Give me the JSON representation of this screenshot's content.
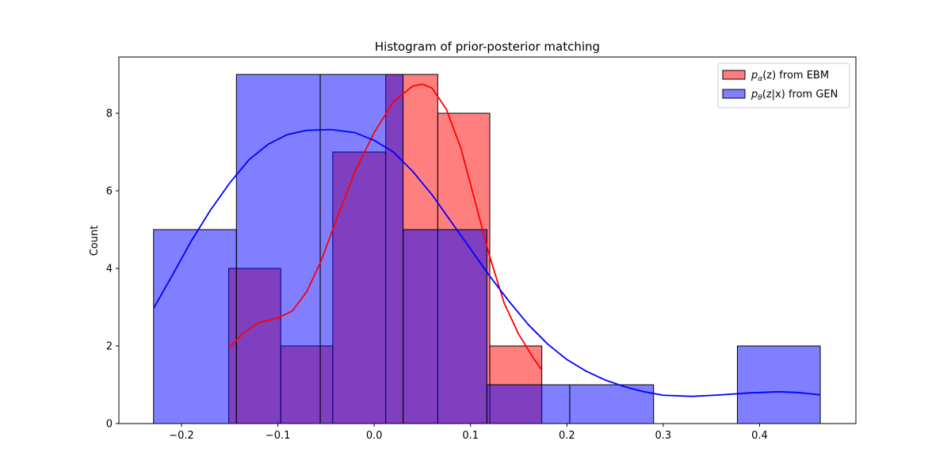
{
  "chart_data": {
    "type": "histogram",
    "title": "Histogram of prior-posterior matching",
    "xlabel": "",
    "ylabel": "Count",
    "xlim": [
      -0.265,
      0.5
    ],
    "ylim": [
      0,
      9.45
    ],
    "x_ticks": [
      -0.2,
      -0.1,
      0.0,
      0.1,
      0.2,
      0.3,
      0.4
    ],
    "x_tick_labels": [
      "−0.2",
      "−0.1",
      "0.0",
      "0.1",
      "0.2",
      "0.3",
      "0.4"
    ],
    "y_ticks": [
      0,
      2,
      4,
      6,
      8
    ],
    "y_tick_labels": [
      "0",
      "2",
      "4",
      "6",
      "8"
    ],
    "grid": false,
    "legend_position": "top-right",
    "series": [
      {
        "name": "p_α(z) from EBM",
        "legend_main": "p",
        "legend_sub": "α",
        "legend_rest": "(z) from EBM",
        "color": "#ff0000",
        "fill": "#ff8080",
        "bins": [
          {
            "x0": -0.151,
            "x1": -0.097,
            "count": 4
          },
          {
            "x0": -0.097,
            "x1": -0.043,
            "count": 2
          },
          {
            "x0": -0.043,
            "x1": 0.012,
            "count": 7
          },
          {
            "x0": 0.012,
            "x1": 0.066,
            "count": 9
          },
          {
            "x0": 0.066,
            "x1": 0.12,
            "count": 8
          },
          {
            "x0": 0.12,
            "x1": 0.174,
            "count": 2
          }
        ],
        "kde": [
          [
            -0.151,
            1.95
          ],
          [
            -0.135,
            2.35
          ],
          [
            -0.12,
            2.6
          ],
          [
            -0.1,
            2.72
          ],
          [
            -0.085,
            2.9
          ],
          [
            -0.07,
            3.4
          ],
          [
            -0.055,
            4.2
          ],
          [
            -0.04,
            5.2
          ],
          [
            -0.02,
            6.5
          ],
          [
            0.0,
            7.5
          ],
          [
            0.02,
            8.3
          ],
          [
            0.04,
            8.7
          ],
          [
            0.05,
            8.75
          ],
          [
            0.06,
            8.65
          ],
          [
            0.075,
            8.1
          ],
          [
            0.09,
            7.1
          ],
          [
            0.105,
            5.7
          ],
          [
            0.12,
            4.3
          ],
          [
            0.135,
            3.1
          ],
          [
            0.15,
            2.3
          ],
          [
            0.165,
            1.7
          ],
          [
            0.174,
            1.38
          ]
        ]
      },
      {
        "name": "p_θ(z|x) from GEN",
        "legend_main": "p",
        "legend_sub": "θ",
        "legend_rest": "(z|x) from GEN",
        "color": "#0000ff",
        "fill": "#8080ff",
        "bins": [
          {
            "x0": -0.229,
            "x1": -0.143,
            "count": 5
          },
          {
            "x0": -0.143,
            "x1": -0.056,
            "count": 9
          },
          {
            "x0": -0.056,
            "x1": 0.03,
            "count": 9
          },
          {
            "x0": 0.03,
            "x1": 0.117,
            "count": 5
          },
          {
            "x0": 0.117,
            "x1": 0.203,
            "count": 1
          },
          {
            "x0": 0.203,
            "x1": 0.29,
            "count": 1
          },
          {
            "x0": 0.29,
            "x1": 0.377,
            "count": 0
          },
          {
            "x0": 0.377,
            "x1": 0.463,
            "count": 2
          }
        ],
        "kde": [
          [
            -0.229,
            2.97
          ],
          [
            -0.21,
            3.8
          ],
          [
            -0.19,
            4.7
          ],
          [
            -0.17,
            5.5
          ],
          [
            -0.15,
            6.2
          ],
          [
            -0.13,
            6.8
          ],
          [
            -0.11,
            7.2
          ],
          [
            -0.09,
            7.45
          ],
          [
            -0.07,
            7.56
          ],
          [
            -0.045,
            7.58
          ],
          [
            -0.02,
            7.5
          ],
          [
            0.0,
            7.3
          ],
          [
            0.02,
            7.0
          ],
          [
            0.04,
            6.5
          ],
          [
            0.06,
            5.9
          ],
          [
            0.08,
            5.2
          ],
          [
            0.1,
            4.5
          ],
          [
            0.12,
            3.8
          ],
          [
            0.14,
            3.15
          ],
          [
            0.16,
            2.55
          ],
          [
            0.18,
            2.05
          ],
          [
            0.2,
            1.65
          ],
          [
            0.22,
            1.35
          ],
          [
            0.24,
            1.12
          ],
          [
            0.26,
            0.95
          ],
          [
            0.28,
            0.82
          ],
          [
            0.3,
            0.73
          ],
          [
            0.33,
            0.7
          ],
          [
            0.36,
            0.74
          ],
          [
            0.39,
            0.79
          ],
          [
            0.42,
            0.82
          ],
          [
            0.44,
            0.8
          ],
          [
            0.463,
            0.74
          ]
        ]
      }
    ]
  }
}
